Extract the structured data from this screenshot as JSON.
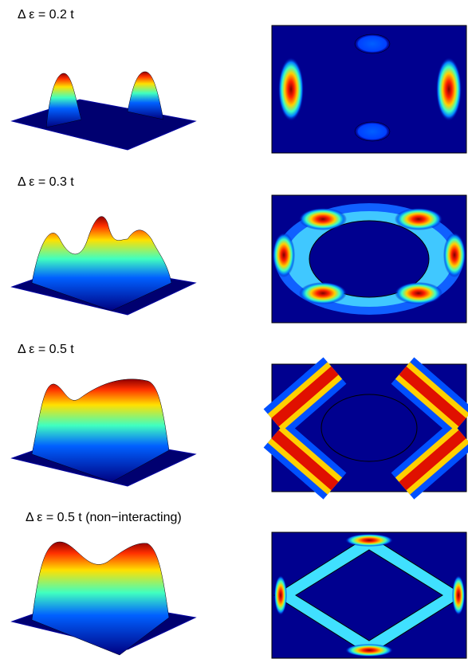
{
  "panels": [
    {
      "label": "Δ ε = 0.2 t"
    },
    {
      "label": "Δ ε = 0.3 t"
    },
    {
      "label": "Δ ε = 0.5 t"
    },
    {
      "label": "Δ ε = 0.5 t (non−interacting)"
    }
  ]
}
